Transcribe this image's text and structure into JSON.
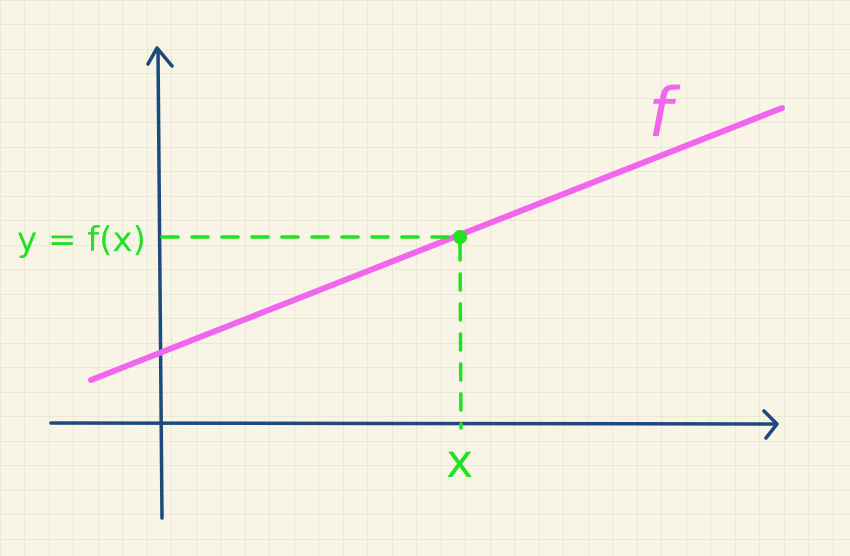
{
  "labels": {
    "function_name": "f",
    "y_label": "y = f(x)",
    "x_label": "x"
  },
  "colors": {
    "paper": "#f8f5e6",
    "grid": "#dcdcc8",
    "axes": "#1d4a7d",
    "function_line": "#f266ee",
    "guide": "#22e022"
  }
}
